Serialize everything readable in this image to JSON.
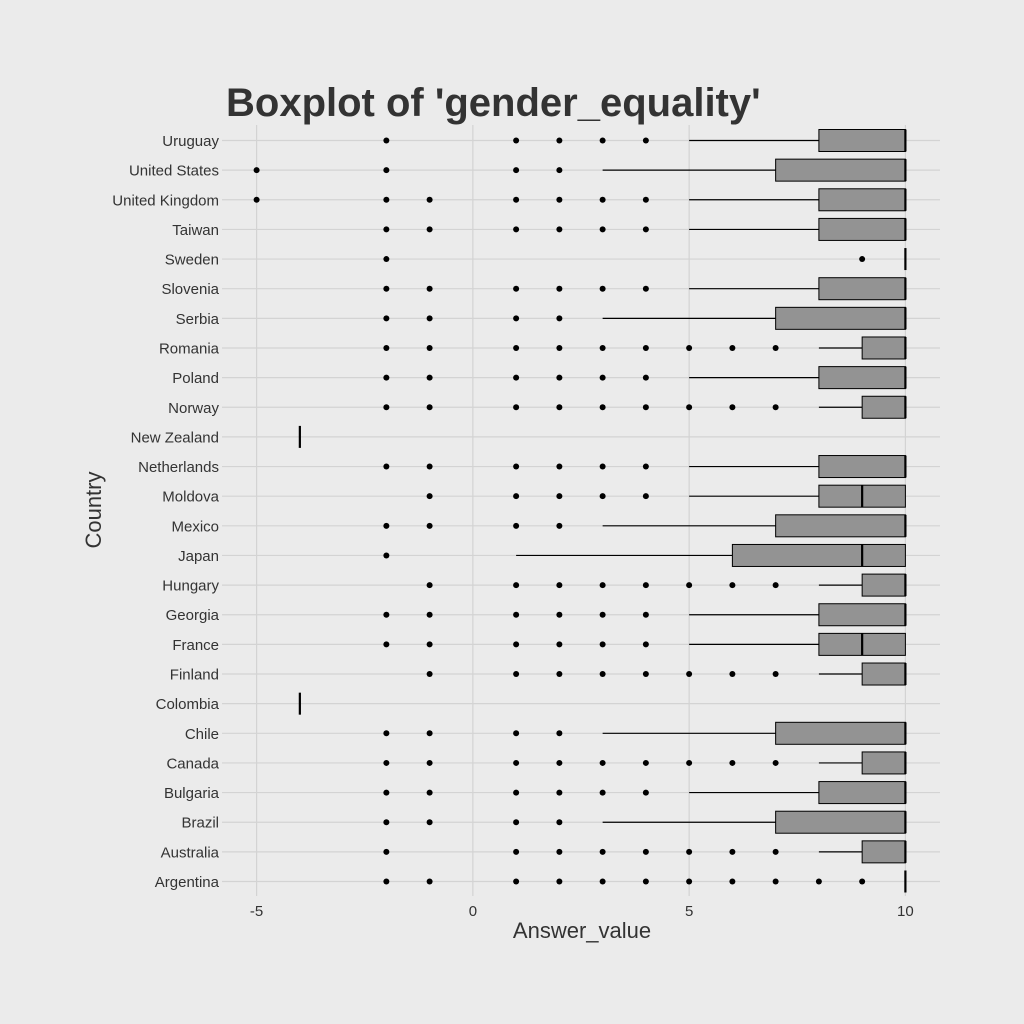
{
  "chart_data": {
    "type": "boxplot",
    "orientation": "horizontal",
    "title": "Boxplot of 'gender_equality'",
    "xlabel": "Answer_value",
    "ylabel": "Country",
    "xlim": [
      -5.8,
      10.8
    ],
    "xticks": [
      -5,
      0,
      5,
      10
    ],
    "grid": true,
    "colors": {
      "background": "#ebebeb",
      "box_fill": "#939393",
      "grid": "#d3d3d3",
      "mark": "#000000"
    },
    "countries": [
      {
        "name": "Uruguay",
        "q1": 8,
        "median": 10,
        "q3": 10,
        "whisker_low": 5,
        "whisker_high": 10,
        "outliers": [
          -2,
          1,
          2,
          3,
          4
        ]
      },
      {
        "name": "United States",
        "q1": 7,
        "median": 10,
        "q3": 10,
        "whisker_low": 3,
        "whisker_high": 10,
        "outliers": [
          -5,
          -2,
          1,
          2
        ]
      },
      {
        "name": "United Kingdom",
        "q1": 8,
        "median": 10,
        "q3": 10,
        "whisker_low": 5,
        "whisker_high": 10,
        "outliers": [
          -5,
          -2,
          -1,
          1,
          2,
          3,
          4
        ]
      },
      {
        "name": "Taiwan",
        "q1": 8,
        "median": 10,
        "q3": 10,
        "whisker_low": 5,
        "whisker_high": 10,
        "outliers": [
          -2,
          -1,
          1,
          2,
          3,
          4
        ]
      },
      {
        "name": "Sweden",
        "q1": 10,
        "median": 10,
        "q3": 10,
        "whisker_low": 10,
        "whisker_high": 10,
        "outliers": [
          -2,
          9
        ]
      },
      {
        "name": "Slovenia",
        "q1": 8,
        "median": 10,
        "q3": 10,
        "whisker_low": 5,
        "whisker_high": 10,
        "outliers": [
          -2,
          -1,
          1,
          2,
          3,
          4
        ]
      },
      {
        "name": "Serbia",
        "q1": 7,
        "median": 10,
        "q3": 10,
        "whisker_low": 3,
        "whisker_high": 10,
        "outliers": [
          -2,
          -1,
          1,
          2
        ]
      },
      {
        "name": "Romania",
        "q1": 9,
        "median": 10,
        "q3": 10,
        "whisker_low": 8,
        "whisker_high": 10,
        "outliers": [
          -2,
          -1,
          1,
          2,
          3,
          4,
          5,
          6,
          7
        ]
      },
      {
        "name": "Poland",
        "q1": 8,
        "median": 10,
        "q3": 10,
        "whisker_low": 5,
        "whisker_high": 10,
        "outliers": [
          -2,
          -1,
          1,
          2,
          3,
          4
        ]
      },
      {
        "name": "Norway",
        "q1": 9,
        "median": 10,
        "q3": 10,
        "whisker_low": 8,
        "whisker_high": 10,
        "outliers": [
          -2,
          -1,
          1,
          2,
          3,
          4,
          5,
          6,
          7
        ]
      },
      {
        "name": "New Zealand",
        "q1": -4,
        "median": -4,
        "q3": -4,
        "whisker_low": -4,
        "whisker_high": -4,
        "outliers": []
      },
      {
        "name": "Netherlands",
        "q1": 8,
        "median": 10,
        "q3": 10,
        "whisker_low": 5,
        "whisker_high": 10,
        "outliers": [
          -2,
          -1,
          1,
          2,
          3,
          4
        ]
      },
      {
        "name": "Moldova",
        "q1": 8,
        "median": 9,
        "q3": 10,
        "whisker_low": 5,
        "whisker_high": 10,
        "outliers": [
          -1,
          1,
          2,
          3,
          4
        ]
      },
      {
        "name": "Mexico",
        "q1": 7,
        "median": 10,
        "q3": 10,
        "whisker_low": 3,
        "whisker_high": 10,
        "outliers": [
          -2,
          -1,
          1,
          2
        ]
      },
      {
        "name": "Japan",
        "q1": 6,
        "median": 9,
        "q3": 10,
        "whisker_low": 1,
        "whisker_high": 10,
        "outliers": [
          -2
        ]
      },
      {
        "name": "Hungary",
        "q1": 9,
        "median": 10,
        "q3": 10,
        "whisker_low": 8,
        "whisker_high": 10,
        "outliers": [
          -1,
          1,
          2,
          3,
          4,
          5,
          6,
          7
        ]
      },
      {
        "name": "Georgia",
        "q1": 8,
        "median": 10,
        "q3": 10,
        "whisker_low": 5,
        "whisker_high": 10,
        "outliers": [
          -2,
          -1,
          1,
          2,
          3,
          4
        ]
      },
      {
        "name": "France",
        "q1": 8,
        "median": 9,
        "q3": 10,
        "whisker_low": 5,
        "whisker_high": 10,
        "outliers": [
          -2,
          -1,
          1,
          2,
          3,
          4
        ]
      },
      {
        "name": "Finland",
        "q1": 9,
        "median": 10,
        "q3": 10,
        "whisker_low": 8,
        "whisker_high": 10,
        "outliers": [
          -1,
          1,
          2,
          3,
          4,
          5,
          6,
          7
        ]
      },
      {
        "name": "Colombia",
        "q1": -4,
        "median": -4,
        "q3": -4,
        "whisker_low": -4,
        "whisker_high": -4,
        "outliers": []
      },
      {
        "name": "Chile",
        "q1": 7,
        "median": 10,
        "q3": 10,
        "whisker_low": 3,
        "whisker_high": 10,
        "outliers": [
          -2,
          -1,
          1,
          2
        ]
      },
      {
        "name": "Canada",
        "q1": 9,
        "median": 10,
        "q3": 10,
        "whisker_low": 8,
        "whisker_high": 10,
        "outliers": [
          -2,
          -1,
          1,
          2,
          3,
          4,
          5,
          6,
          7
        ]
      },
      {
        "name": "Bulgaria",
        "q1": 8,
        "median": 10,
        "q3": 10,
        "whisker_low": 5,
        "whisker_high": 10,
        "outliers": [
          -2,
          -1,
          1,
          2,
          3,
          4
        ]
      },
      {
        "name": "Brazil",
        "q1": 7,
        "median": 10,
        "q3": 10,
        "whisker_low": 3,
        "whisker_high": 10,
        "outliers": [
          -2,
          -1,
          1,
          2
        ]
      },
      {
        "name": "Australia",
        "q1": 9,
        "median": 10,
        "q3": 10,
        "whisker_low": 8,
        "whisker_high": 10,
        "outliers": [
          -2,
          1,
          2,
          3,
          4,
          5,
          6,
          7
        ]
      },
      {
        "name": "Argentina",
        "q1": 10,
        "median": 10,
        "q3": 10,
        "whisker_low": 10,
        "whisker_high": 10,
        "outliers": [
          -2,
          -1,
          1,
          2,
          3,
          4,
          5,
          6,
          7,
          8,
          9
        ]
      }
    ]
  }
}
